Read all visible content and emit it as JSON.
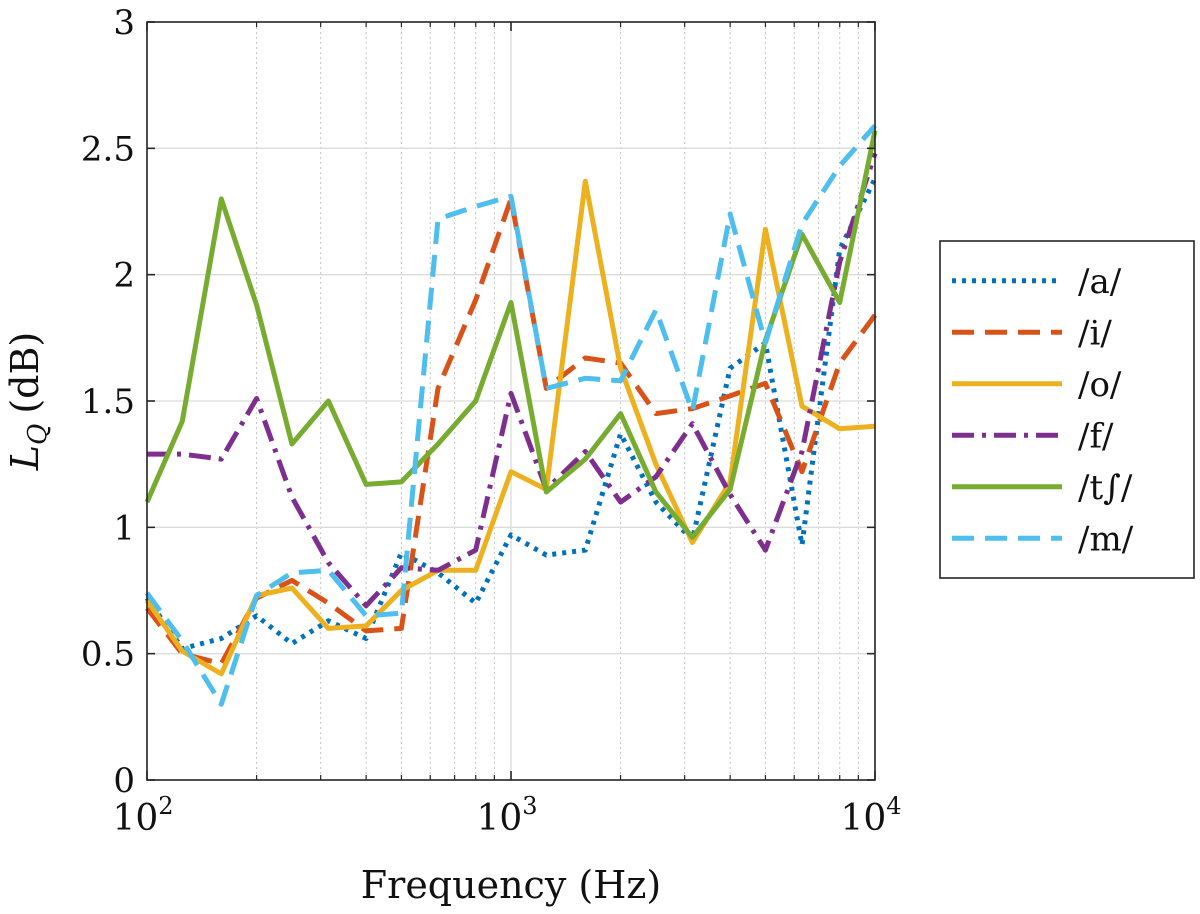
{
  "chart_data": {
    "type": "line",
    "x_scale": "log",
    "xlim": [
      100,
      10000
    ],
    "ylim": [
      0,
      3
    ],
    "xlabel": "Frequency (Hz)",
    "ylabel": "L",
    "ylabel_sub": "Q",
    "ylabel_unit": "(dB)",
    "x_ticks": [
      {
        "value": 100,
        "base": "10",
        "exp": "2"
      },
      {
        "value": 1000,
        "base": "10",
        "exp": "3"
      },
      {
        "value": 10000,
        "base": "10",
        "exp": "4"
      }
    ],
    "y_ticks": [
      {
        "value": 0,
        "label": "0"
      },
      {
        "value": 0.5,
        "label": "0.5"
      },
      {
        "value": 1,
        "label": "1"
      },
      {
        "value": 1.5,
        "label": "1.5"
      },
      {
        "value": 2,
        "label": "2"
      },
      {
        "value": 2.5,
        "label": "2.5"
      },
      {
        "value": 3,
        "label": "3"
      }
    ],
    "grid": true,
    "legend_position": "outside-right",
    "series": [
      {
        "name": "/a/",
        "color": "#0072BD",
        "dash": "dotted",
        "x": [
          100,
          125,
          160,
          200,
          250,
          315,
          400,
          500,
          630,
          800,
          1000,
          1250,
          1600,
          2000,
          2500,
          3150,
          4000,
          5000,
          6300,
          8000,
          10000
        ],
        "y": [
          0.72,
          0.52,
          0.56,
          0.65,
          0.54,
          0.63,
          0.56,
          0.9,
          0.82,
          0.7,
          0.97,
          0.89,
          0.91,
          1.37,
          1.1,
          0.95,
          1.63,
          1.73,
          0.93,
          2.1,
          2.38
        ]
      },
      {
        "name": "/i/",
        "color": "#D95319",
        "dash": "dashed",
        "x": [
          100,
          125,
          160,
          200,
          250,
          315,
          400,
          500,
          630,
          800,
          1000,
          1250,
          1600,
          2000,
          2500,
          3150,
          4000,
          5000,
          6300,
          8000,
          10000
        ],
        "y": [
          0.68,
          0.5,
          0.46,
          0.72,
          0.79,
          0.7,
          0.59,
          0.6,
          1.55,
          1.9,
          2.3,
          1.55,
          1.67,
          1.65,
          1.45,
          1.47,
          1.52,
          1.57,
          1.22,
          1.65,
          1.84
        ]
      },
      {
        "name": "/o/",
        "color": "#EDB120",
        "dash": "solid",
        "x": [
          100,
          125,
          160,
          200,
          250,
          315,
          400,
          500,
          630,
          800,
          1000,
          1250,
          1600,
          2000,
          2500,
          3150,
          4000,
          5000,
          6300,
          8000,
          10000
        ],
        "y": [
          0.71,
          0.51,
          0.42,
          0.73,
          0.76,
          0.6,
          0.61,
          0.75,
          0.83,
          0.83,
          1.22,
          1.15,
          2.37,
          1.63,
          1.25,
          0.94,
          1.18,
          2.18,
          1.48,
          1.39,
          1.4
        ]
      },
      {
        "name": "/f/",
        "color": "#7E2F8E",
        "dash": "dashdot",
        "x": [
          100,
          125,
          160,
          200,
          250,
          315,
          400,
          500,
          630,
          800,
          1000,
          1250,
          1600,
          2000,
          2500,
          3150,
          4000,
          5000,
          6300,
          8000,
          10000
        ],
        "y": [
          1.29,
          1.29,
          1.27,
          1.51,
          1.12,
          0.86,
          0.69,
          0.84,
          0.83,
          0.91,
          1.53,
          1.15,
          1.3,
          1.1,
          1.2,
          1.41,
          1.13,
          0.91,
          1.3,
          2.05,
          2.48
        ]
      },
      {
        "name": "/t∫/",
        "color": "#77AC30",
        "dash": "solid",
        "x": [
          100,
          125,
          160,
          200,
          250,
          315,
          400,
          500,
          630,
          800,
          1000,
          1250,
          1600,
          2000,
          2500,
          3150,
          4000,
          5000,
          6300,
          8000,
          10000
        ],
        "y": [
          1.1,
          1.42,
          2.3,
          1.88,
          1.33,
          1.5,
          1.17,
          1.18,
          1.33,
          1.5,
          1.89,
          1.14,
          1.27,
          1.45,
          1.14,
          0.96,
          1.15,
          1.74,
          2.16,
          1.89,
          2.57
        ]
      },
      {
        "name": "/m/",
        "color": "#4DBEEE",
        "dash": "dashed",
        "x": [
          100,
          125,
          160,
          200,
          250,
          315,
          400,
          500,
          630,
          800,
          1000,
          1250,
          1600,
          2000,
          2500,
          3150,
          4000,
          5000,
          6300,
          8000,
          10000
        ],
        "y": [
          0.74,
          0.55,
          0.3,
          0.73,
          0.82,
          0.83,
          0.65,
          0.66,
          2.22,
          2.27,
          2.31,
          1.55,
          1.59,
          1.58,
          1.86,
          1.46,
          2.24,
          1.73,
          2.2,
          2.43,
          2.59
        ]
      }
    ]
  }
}
